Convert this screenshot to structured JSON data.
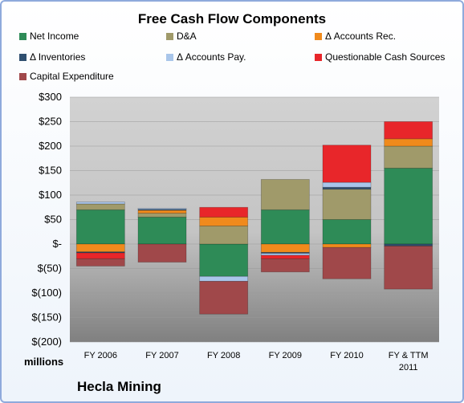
{
  "chart_data": {
    "type": "bar",
    "stacked": true,
    "title": "Free Cash Flow Components",
    "unit_label": "millions",
    "footer": "Hecla Mining",
    "categories": [
      "FY 2006",
      "FY 2007",
      "FY 2008",
      "FY 2009",
      "FY 2010",
      "FY & TTM 2011"
    ],
    "ylim": [
      -200,
      300
    ],
    "yticks": [
      300,
      250,
      200,
      150,
      100,
      50,
      0,
      -50,
      -100,
      -150,
      -200
    ],
    "ytick_labels": [
      "$300",
      "$250",
      "$200",
      "$150",
      "$100",
      "$50",
      "$-",
      "$(50)",
      "$(100)",
      "$(150)",
      "$(200)"
    ],
    "legend_position": "top",
    "series": [
      {
        "name": "Net Income",
        "color": "#2e8b57",
        "values": [
          70,
          55,
          -66,
          70,
          50,
          155
        ]
      },
      {
        "name": "D&A",
        "color": "#a09a6a",
        "values": [
          12,
          8,
          37,
          62,
          62,
          45
        ]
      },
      {
        "name": "Δ Accounts Rec.",
        "color": "#f08a1c",
        "values": [
          -16,
          6,
          18,
          -17,
          -7,
          15
        ]
      },
      {
        "name": "Δ Inventories",
        "color": "#2f4f6f",
        "values": [
          -2,
          2,
          0,
          -2,
          4,
          -4
        ]
      },
      {
        "name": "Δ Accounts Pay.",
        "color": "#a9c6ea",
        "values": [
          4,
          2,
          -10,
          -4,
          10,
          0
        ]
      },
      {
        "name": "Questionable Cash Sources",
        "color": "#e8262a",
        "values": [
          -12,
          0,
          20,
          -7,
          76,
          35
        ]
      },
      {
        "name": "Capital Expenditure",
        "color": "#a0484a",
        "values": [
          -15,
          -37,
          -67,
          -27,
          -64,
          -88
        ]
      }
    ]
  }
}
